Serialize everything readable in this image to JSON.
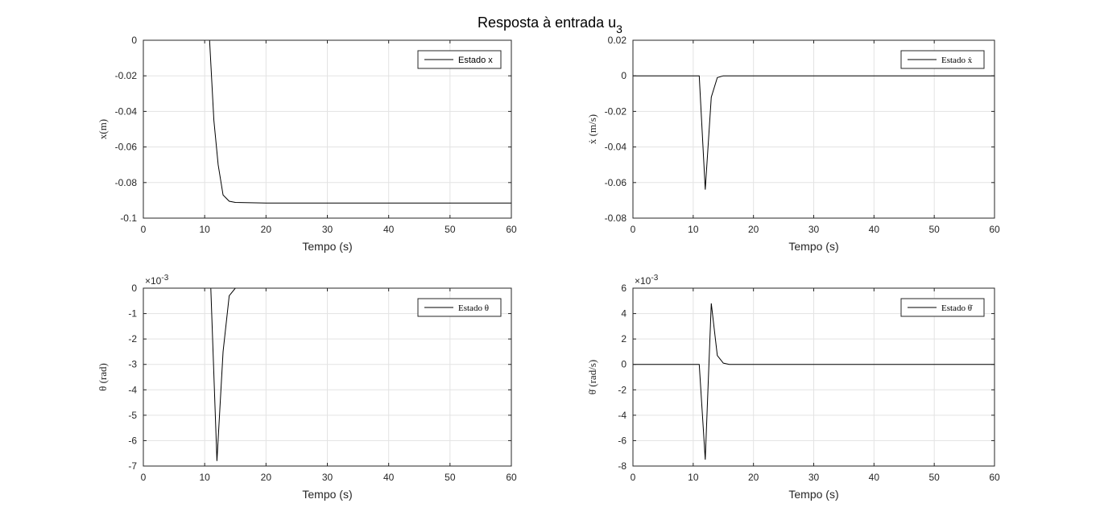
{
  "figure": {
    "title_main": "Resposta à entrada u",
    "title_sub": "3"
  },
  "chart_data": [
    {
      "type": "line",
      "xlabel": "Tempo (s)",
      "ylabel": "x(m)",
      "xlim": [
        0,
        60
      ],
      "ylim": [
        -0.1,
        0
      ],
      "xticks": [
        0,
        10,
        20,
        30,
        40,
        50,
        60
      ],
      "yticks": [
        0,
        -0.02,
        -0.04,
        -0.06,
        -0.08,
        -0.1
      ],
      "ytick_labels": [
        "0",
        "-0.02",
        "-0.04",
        "-0.06",
        "-0.08",
        "-0.1"
      ],
      "exponent": "",
      "grid": true,
      "legend_position": "top-right",
      "series": [
        {
          "name": "Estado x",
          "color": "#000000",
          "x": [
            0,
            10.8,
            11.5,
            12.2,
            13.0,
            14.0,
            15,
            20,
            60
          ],
          "y": [
            0,
            0,
            -0.045,
            -0.07,
            -0.087,
            -0.0905,
            -0.0912,
            -0.0915,
            -0.0915
          ]
        }
      ]
    },
    {
      "type": "line",
      "xlabel": "Tempo (s)",
      "ylabel": "ẋ (m/s)",
      "xlim": [
        0,
        60
      ],
      "ylim": [
        -0.08,
        0.02
      ],
      "xticks": [
        0,
        10,
        20,
        30,
        40,
        50,
        60
      ],
      "yticks": [
        0.02,
        0,
        -0.02,
        -0.04,
        -0.06,
        -0.08
      ],
      "ytick_labels": [
        "0.02",
        "0",
        "-0.02",
        "-0.04",
        "-0.06",
        "-0.08"
      ],
      "exponent": "",
      "grid": true,
      "legend_position": "top-right",
      "series": [
        {
          "name": "Estado ẋ",
          "color": "#000000",
          "x": [
            0,
            11.0,
            12.0,
            13.0,
            14.0,
            15.0,
            60
          ],
          "y": [
            0,
            0,
            -0.064,
            -0.012,
            -0.001,
            0,
            0
          ]
        }
      ]
    },
    {
      "type": "line",
      "xlabel": "Tempo (s)",
      "ylabel": "θ (rad)",
      "xlim": [
        0,
        60
      ],
      "ylim": [
        -7,
        0
      ],
      "xticks": [
        0,
        10,
        20,
        30,
        40,
        50,
        60
      ],
      "yticks": [
        0,
        -1,
        -2,
        -3,
        -4,
        -5,
        -6,
        -7
      ],
      "ytick_labels": [
        "0",
        "-1",
        "-2",
        "-3",
        "-4",
        "-5",
        "-6",
        "-7"
      ],
      "exponent": "×10",
      "exponent_power": "-3",
      "grid": true,
      "legend_position": "top-right",
      "series": [
        {
          "name": "Estado θ",
          "color": "#000000",
          "x": [
            0,
            11.0,
            12.0,
            13.0,
            14.0,
            15.0,
            60
          ],
          "y": [
            0,
            0,
            -6.8,
            -2.5,
            -0.3,
            0,
            0
          ]
        }
      ]
    },
    {
      "type": "line",
      "xlabel": "Tempo (s)",
      "ylabel": "θ̇ (rad/s)",
      "xlim": [
        0,
        60
      ],
      "ylim": [
        -8,
        6
      ],
      "xticks": [
        0,
        10,
        20,
        30,
        40,
        50,
        60
      ],
      "yticks": [
        6,
        4,
        2,
        0,
        -2,
        -4,
        -6,
        -8
      ],
      "ytick_labels": [
        "6",
        "4",
        "2",
        "0",
        "-2",
        "-4",
        "-6",
        "-8"
      ],
      "exponent": "×10",
      "exponent_power": "-3",
      "grid": true,
      "legend_position": "top-right",
      "series": [
        {
          "name": "Estado θ̇",
          "color": "#000000",
          "x": [
            0,
            11.0,
            12.0,
            13.0,
            14.0,
            15.0,
            16.0,
            60
          ],
          "y": [
            0,
            0,
            -7.5,
            4.8,
            0.7,
            0.1,
            0,
            0
          ]
        }
      ]
    }
  ]
}
